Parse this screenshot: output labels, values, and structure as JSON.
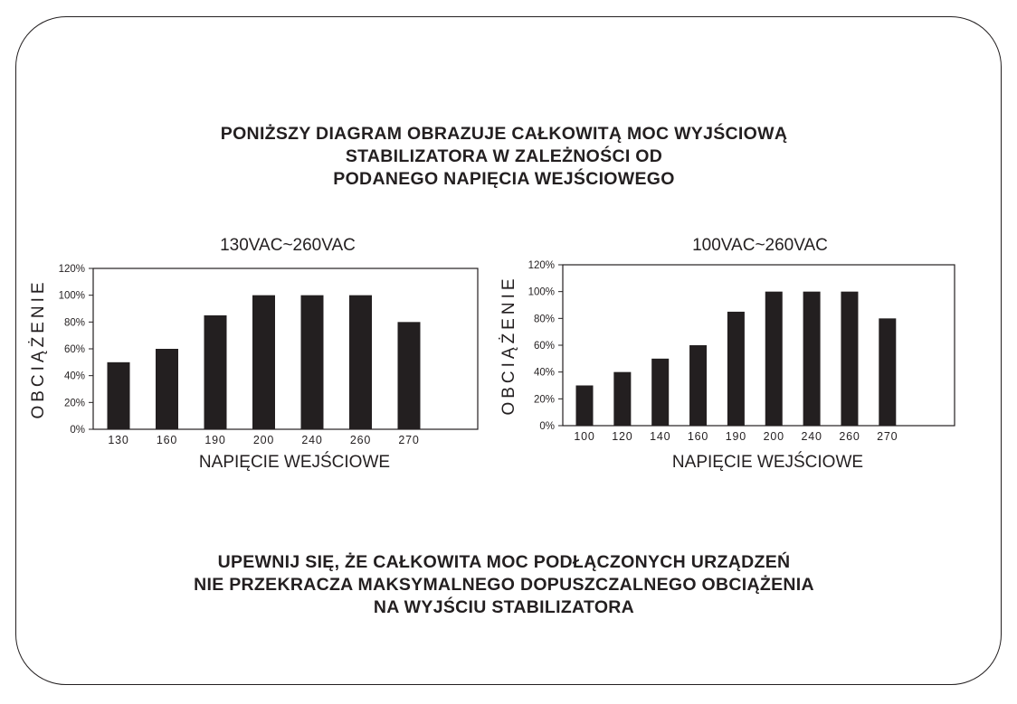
{
  "heading_top": [
    "PONIŻSZY DIAGRAM OBRAZUJE CAŁKOWITĄ MOC WYJŚCIOWĄ",
    "STABILIZATORA W ZALEŻNOŚCI OD",
    "PODANEGO NAPIĘCIA WEJŚCIOWEGO"
  ],
  "heading_bottom": [
    "UPEWNIJ SIĘ, ŻE CAŁKOWITA MOC PODŁĄCZONYCH URZĄDZEŃ",
    "NIE PRZEKRACZA MAKSYMALNEGO DOPUSZCZALNEGO OBCIĄŻENIA",
    "NA WYJŚCIU STABILIZATORA"
  ],
  "colors": {
    "bar": "#231f20",
    "text": "#231f20"
  },
  "chart_data": [
    {
      "type": "bar",
      "title": "130VAC~260VAC",
      "xlabel": "NAPIĘCIE WEJŚCIOWE",
      "ylabel": "OBCIĄŻENIE",
      "categories": [
        "130",
        "160",
        "190",
        "200",
        "240",
        "260",
        "270"
      ],
      "values": [
        50,
        60,
        85,
        100,
        100,
        100,
        80
      ],
      "ylim": [
        0,
        120
      ],
      "yticks": [
        "0%",
        "20%",
        "40%",
        "60%",
        "80%",
        "100%",
        "120%"
      ],
      "grid": false
    },
    {
      "type": "bar",
      "title": "100VAC~260VAC",
      "xlabel": "NAPIĘCIE WEJŚCIOWE",
      "ylabel": "OBCIĄŻENIE",
      "categories": [
        "100",
        "120",
        "140",
        "160",
        "190",
        "200",
        "240",
        "260",
        "270"
      ],
      "values": [
        30,
        40,
        50,
        60,
        85,
        100,
        100,
        100,
        80
      ],
      "ylim": [
        0,
        120
      ],
      "yticks": [
        "0%",
        "20%",
        "40%",
        "60%",
        "80%",
        "100%",
        "120%"
      ],
      "grid": false
    }
  ]
}
